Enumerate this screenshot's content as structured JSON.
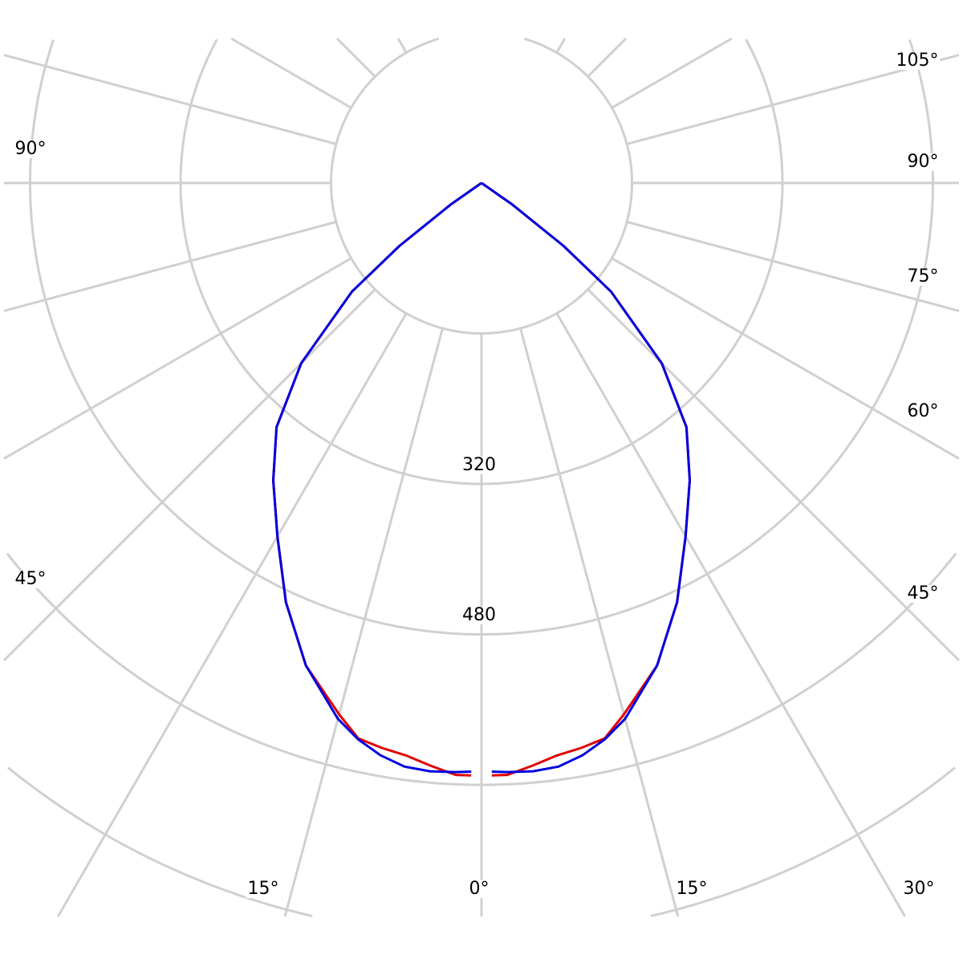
{
  "chart_data": {
    "type": "polar",
    "grid": true,
    "grid_color": "#d0d0d0",
    "radial_ticks": [
      160,
      320,
      480,
      640,
      800
    ],
    "radial_tick_labels": [
      "320",
      "480"
    ],
    "angle_step_deg": 15,
    "angle_labels": {
      "left_90": "90°",
      "left_45": "45°",
      "bottom_left_15": "15°",
      "bottom_0": "0°",
      "bottom_right_15": "15°",
      "bottom_right_30": "30°",
      "right_45": "45°",
      "right_60": "60°",
      "right_75": "75°",
      "right_90": "90°",
      "right_105": "105°"
    },
    "symmetric": true,
    "series": [
      {
        "color": "#e00000",
        "angles": [
          1,
          2.5,
          5,
          7.5,
          10,
          12.5,
          15,
          20,
          25,
          30,
          35,
          40,
          45,
          50,
          52.5,
          55,
          57
        ],
        "values": [
          630,
          630,
          622,
          614,
          610,
          605,
          585,
          546,
          492,
          434,
          386,
          339,
          271,
          180,
          110,
          40,
          0
        ]
      },
      {
        "color": "#0000e0",
        "angles": [
          1,
          2.5,
          5,
          7.5,
          10,
          12.5,
          15,
          20,
          25,
          30,
          35,
          40,
          45,
          50,
          52.5,
          55,
          57
        ],
        "values": [
          626,
          627,
          628,
          626,
          618,
          606,
          590,
          546,
          492,
          434,
          386,
          339,
          271,
          180,
          110,
          40,
          0
        ]
      }
    ]
  }
}
